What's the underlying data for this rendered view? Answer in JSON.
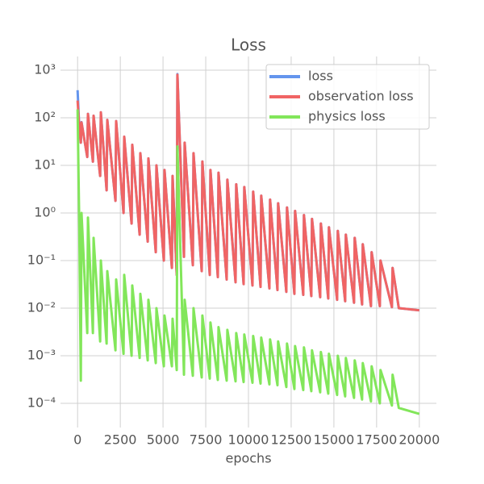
{
  "chart_data": {
    "type": "line",
    "title": "Loss",
    "x_label": "epochs",
    "y_scale": "log",
    "grid": true,
    "legend_position": "upper right",
    "xlim": [
      -1000,
      21000
    ],
    "xticks": [
      0,
      2500,
      5000,
      7500,
      10000,
      12500,
      15000,
      17500,
      20000
    ],
    "ylim": [
      3.1e-05,
      1940
    ],
    "yticks": [
      {
        "value": 0.0001,
        "label": "10⁻⁴"
      },
      {
        "value": 0.001,
        "label": "10⁻³"
      },
      {
        "value": 0.01,
        "label": "10⁻²"
      },
      {
        "value": 0.1,
        "label": "10⁻¹"
      },
      {
        "value": 1,
        "label": "10⁰"
      },
      {
        "value": 10,
        "label": "10¹"
      },
      {
        "value": 100,
        "label": "10²"
      },
      {
        "value": 1000,
        "label": "10³"
      }
    ],
    "x": [
      0,
      100,
      189,
      229,
      566,
      606,
      896,
      936,
      1321,
      1361,
      1698,
      1738,
      2217,
      2257,
      2689,
      2729,
      3160,
      3200,
      3632,
      3672,
      4104,
      4144,
      4575,
      4615,
      5047,
      5087,
      5519,
      5559,
      5802,
      5842,
      6226,
      6266,
      6745,
      6785,
      7264,
      7304,
      7736,
      7776,
      8208,
      8248,
      8726,
      8766,
      9245,
      9285,
      9717,
      9757,
      10236,
      10276,
      10708,
      10748,
      11226,
      11266,
      11698,
      11738,
      12217,
      12257,
      12689,
      12729,
      13208,
      13248,
      13679,
      13719,
      14198,
      14238,
      14670,
      14710,
      15189,
      15229,
      15660,
      15700,
      16179,
      16219,
      16651,
      16691,
      17170,
      17210,
      17689,
      17729,
      18396,
      18436,
      18800,
      20000
    ],
    "series": [
      {
        "name": "loss",
        "color": "#6495ed",
        "values": [
          380,
          60.5,
          30,
          81,
          15,
          121,
          12,
          110,
          6,
          130,
          3,
          90,
          1.8,
          85,
          1.0,
          40,
          0.6,
          27,
          0.35,
          18,
          0.25,
          14,
          0.15,
          10,
          0.1,
          8,
          0.07,
          6,
          0.05,
          825,
          0.12,
          30,
          0.08,
          18,
          0.06,
          12,
          0.05,
          8,
          0.045,
          7,
          0.04,
          5,
          0.035,
          4,
          0.032,
          3.5,
          0.03,
          2.8,
          0.028,
          2.3,
          0.026,
          1.9,
          0.024,
          1.6,
          0.022,
          1.3,
          0.02,
          1.1,
          0.019,
          0.9,
          0.018,
          0.75,
          0.017,
          0.6,
          0.016,
          0.5,
          0.015,
          0.42,
          0.014,
          0.35,
          0.013,
          0.3,
          0.012,
          0.22,
          0.011,
          0.15,
          0.011,
          0.1,
          0.0105,
          0.07,
          0.01,
          0.009
        ]
      },
      {
        "name": "observation loss",
        "color": "#f06464",
        "values": [
          230,
          60,
          30,
          80,
          15,
          120,
          12,
          110,
          6,
          130,
          3,
          90,
          1.8,
          85,
          1.0,
          40,
          0.6,
          27,
          0.35,
          18,
          0.25,
          14,
          0.15,
          10,
          0.1,
          8,
          0.07,
          6,
          0.05,
          800,
          0.12,
          30,
          0.08,
          18,
          0.06,
          12,
          0.05,
          8,
          0.045,
          7,
          0.04,
          5,
          0.035,
          4,
          0.032,
          3.5,
          0.03,
          2.8,
          0.028,
          2.3,
          0.026,
          1.9,
          0.024,
          1.6,
          0.022,
          1.3,
          0.02,
          1.1,
          0.019,
          0.9,
          0.018,
          0.75,
          0.017,
          0.6,
          0.016,
          0.5,
          0.015,
          0.42,
          0.014,
          0.35,
          0.013,
          0.3,
          0.012,
          0.22,
          0.011,
          0.15,
          0.011,
          0.1,
          0.0105,
          0.07,
          0.01,
          0.009
        ]
      },
      {
        "name": "physics loss",
        "color": "#82e65a",
        "values": [
          150,
          0.5,
          0.0003,
          1,
          0.003,
          0.8,
          0.003,
          0.3,
          0.002,
          0.1,
          0.0018,
          0.06,
          0.0013,
          0.04,
          0.0011,
          0.05,
          0.001,
          0.03,
          0.0009,
          0.02,
          0.0008,
          0.015,
          0.0007,
          0.01,
          0.0006,
          0.007,
          0.0006,
          0.006,
          0.0005,
          25,
          0.0004,
          0.015,
          0.00038,
          0.01,
          0.00035,
          0.007,
          0.00033,
          0.005,
          0.00031,
          0.004,
          0.0003,
          0.0035,
          0.00029,
          0.003,
          0.00028,
          0.0028,
          0.00027,
          0.0026,
          0.00026,
          0.0024,
          0.00025,
          0.0022,
          0.00024,
          0.002,
          0.00022,
          0.0018,
          0.0002,
          0.0016,
          0.00019,
          0.0015,
          0.00018,
          0.0013,
          0.00017,
          0.0012,
          0.00016,
          0.0011,
          0.00015,
          0.001,
          0.00014,
          0.0009,
          0.00013,
          0.0008,
          0.00012,
          0.0007,
          0.00011,
          0.0006,
          0.0001,
          0.0005,
          9e-05,
          0.0004,
          8e-05,
          6e-05
        ]
      }
    ]
  }
}
